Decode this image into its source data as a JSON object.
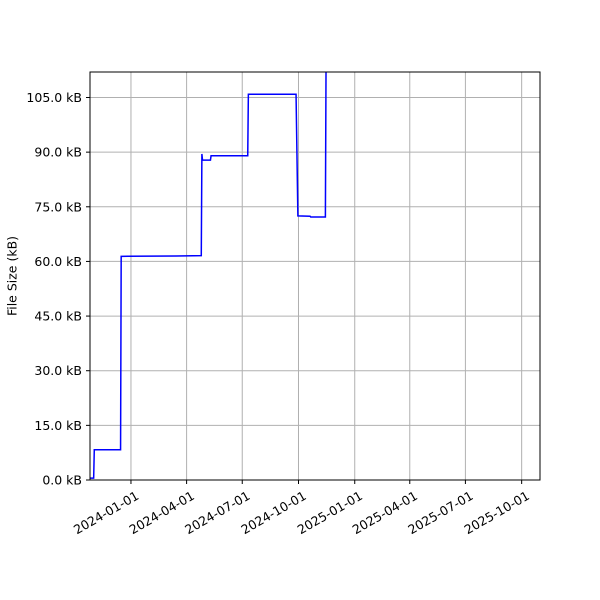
{
  "chart_data": {
    "type": "line",
    "title": "",
    "xlabel": "",
    "ylabel": "File Size (kB)",
    "grid": true,
    "legend": "none",
    "colors": {
      "line": "#0000ff",
      "grid": "#b0b0b0",
      "axes": "#000000",
      "background": "#ffffff"
    },
    "xlim": [
      "2023-10-26",
      "2025-10-31"
    ],
    "ylim": [
      0,
      112
    ],
    "x_ticks": [
      "2024-01-01",
      "2024-04-01",
      "2024-07-01",
      "2024-10-01",
      "2025-01-01",
      "2025-04-01",
      "2025-07-01",
      "2025-10-01"
    ],
    "x_tick_labels": [
      "2024-01-01",
      "2024-04-01",
      "2024-07-01",
      "2024-10-01",
      "2025-01-01",
      "2025-04-01",
      "2025-07-01",
      "2025-10-01"
    ],
    "y_ticks": [
      0,
      15,
      30,
      45,
      60,
      75,
      90,
      105
    ],
    "y_tick_labels": [
      "0.0 kB",
      "15.0 kB",
      "30.0 kB",
      "45.0 kB",
      "60.0 kB",
      "75.0 kB",
      "90.0 kB",
      "105.0 kB"
    ],
    "series": [
      {
        "x": [
          "2023-10-26",
          "2023-11-01",
          "2023-11-02",
          "2023-12-15",
          "2023-12-16",
          "2024-03-15",
          "2024-04-25",
          "2024-04-26",
          "2024-04-27",
          "2024-05-10",
          "2024-05-11",
          "2024-07-10",
          "2024-07-11",
          "2024-09-27",
          "2024-09-30",
          "2024-10-20",
          "2024-10-21",
          "2024-11-14",
          "2024-11-15"
        ],
        "y": [
          0.5,
          0.5,
          8.3,
          8.3,
          61.4,
          61.5,
          61.6,
          89.5,
          87.8,
          87.8,
          89.0,
          89.0,
          105.9,
          105.9,
          72.5,
          72.4,
          72.2,
          72.2,
          112
        ]
      }
    ]
  }
}
